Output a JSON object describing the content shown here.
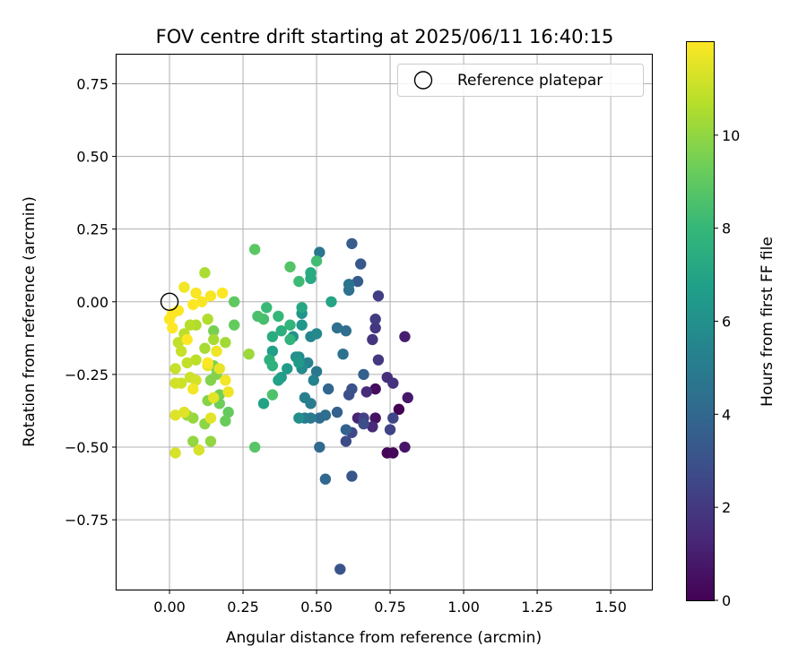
{
  "chart_data": {
    "type": "scatter",
    "title": "FOV centre drift starting at 2025/06/11 16:40:15",
    "xlabel": "Angular distance from reference (arcmin)",
    "ylabel": "Rotation from reference (arcmin)",
    "xlim": [
      -0.18,
      1.64
    ],
    "ylim": [
      -0.99,
      0.85
    ],
    "xticks": [
      "0.00",
      "0.25",
      "0.50",
      "0.75",
      "1.00",
      "1.25",
      "1.50"
    ],
    "xtick_values": [
      0,
      0.25,
      0.5,
      0.75,
      1.0,
      1.25,
      1.5
    ],
    "yticks": [
      "0.75",
      "0.50",
      "0.25",
      "0.00",
      "−0.25",
      "−0.50",
      "−0.75"
    ],
    "ytick_values": [
      0.75,
      0.5,
      0.25,
      0,
      -0.25,
      -0.5,
      -0.75
    ],
    "grid": true,
    "legend": {
      "position": "top-right",
      "entries": [
        "Reference platepar"
      ]
    },
    "reference_point": {
      "x": 0,
      "y": 0
    },
    "colorbar": {
      "label": "Hours from first FF file",
      "colormap": "viridis",
      "range": [
        0,
        12
      ],
      "ticks": [
        "0",
        "2",
        "4",
        "6",
        "8",
        "10"
      ],
      "tick_values": [
        0,
        2,
        4,
        6,
        8,
        10
      ]
    },
    "color_stops": [
      "#440154",
      "#482878",
      "#3e4a89",
      "#31688e",
      "#26828e",
      "#1f9e89",
      "#35b779",
      "#6ece58",
      "#b5de2b",
      "#fde725"
    ],
    "series": [
      {
        "points": [
          {
            "x": 0.78,
            "y": -0.37,
            "c": 0.0
          },
          {
            "x": 0.74,
            "y": -0.52,
            "c": 0.1
          },
          {
            "x": 0.76,
            "y": -0.52,
            "c": 0.2
          },
          {
            "x": 0.7,
            "y": -0.3,
            "c": 0.4
          },
          {
            "x": 0.7,
            "y": -0.4,
            "c": 0.6
          },
          {
            "x": 0.8,
            "y": -0.5,
            "c": 0.7
          },
          {
            "x": 0.81,
            "y": -0.33,
            "c": 0.8
          },
          {
            "x": 0.8,
            "y": -0.12,
            "c": 1.0
          },
          {
            "x": 0.64,
            "y": -0.4,
            "c": 1.2
          },
          {
            "x": 0.69,
            "y": -0.43,
            "c": 1.4
          },
          {
            "x": 0.67,
            "y": -0.31,
            "c": 1.5
          },
          {
            "x": 0.74,
            "y": -0.26,
            "c": 1.6
          },
          {
            "x": 0.76,
            "y": -0.28,
            "c": 1.7
          },
          {
            "x": 0.69,
            "y": -0.13,
            "c": 1.8
          },
          {
            "x": 0.7,
            "y": -0.09,
            "c": 1.9
          },
          {
            "x": 0.71,
            "y": -0.2,
            "c": 2.0
          },
          {
            "x": 0.7,
            "y": -0.06,
            "c": 2.1
          },
          {
            "x": 0.71,
            "y": 0.02,
            "c": 2.2
          },
          {
            "x": 0.66,
            "y": -0.4,
            "c": 2.3
          },
          {
            "x": 0.75,
            "y": -0.44,
            "c": 2.4
          },
          {
            "x": 0.76,
            "y": -0.4,
            "c": 2.5
          },
          {
            "x": 0.62,
            "y": -0.45,
            "c": 2.6
          },
          {
            "x": 0.6,
            "y": -0.48,
            "c": 2.7
          },
          {
            "x": 0.66,
            "y": -0.42,
            "c": 2.8
          },
          {
            "x": 0.61,
            "y": -0.32,
            "c": 2.9
          },
          {
            "x": 0.62,
            "y": -0.3,
            "c": 3.0
          },
          {
            "x": 0.58,
            "y": -0.92,
            "c": 3.1
          },
          {
            "x": 0.62,
            "y": -0.6,
            "c": 3.2
          },
          {
            "x": 0.65,
            "y": 0.13,
            "c": 3.3
          },
          {
            "x": 0.64,
            "y": 0.07,
            "c": 3.4
          },
          {
            "x": 0.62,
            "y": 0.2,
            "c": 3.5
          },
          {
            "x": 0.66,
            "y": -0.25,
            "c": 3.6
          },
          {
            "x": 0.57,
            "y": -0.38,
            "c": 3.7
          },
          {
            "x": 0.6,
            "y": -0.44,
            "c": 3.8
          },
          {
            "x": 0.54,
            "y": -0.3,
            "c": 3.9
          },
          {
            "x": 0.53,
            "y": -0.61,
            "c": 4.0
          },
          {
            "x": 0.51,
            "y": -0.5,
            "c": 4.1
          },
          {
            "x": 0.51,
            "y": -0.4,
            "c": 4.2
          },
          {
            "x": 0.53,
            "y": -0.39,
            "c": 4.3
          },
          {
            "x": 0.6,
            "y": -0.1,
            "c": 4.3
          },
          {
            "x": 0.57,
            "y": -0.09,
            "c": 4.4
          },
          {
            "x": 0.59,
            "y": -0.18,
            "c": 4.5
          },
          {
            "x": 0.61,
            "y": 0.04,
            "c": 4.5
          },
          {
            "x": 0.61,
            "y": 0.06,
            "c": 4.6
          },
          {
            "x": 0.51,
            "y": 0.17,
            "c": 4.7
          },
          {
            "x": 0.5,
            "y": -0.24,
            "c": 4.8
          },
          {
            "x": 0.48,
            "y": -0.4,
            "c": 4.9
          },
          {
            "x": 0.46,
            "y": -0.4,
            "c": 5.0
          },
          {
            "x": 0.48,
            "y": -0.35,
            "c": 5.1
          },
          {
            "x": 0.46,
            "y": -0.33,
            "c": 5.2
          },
          {
            "x": 0.49,
            "y": -0.27,
            "c": 5.3
          },
          {
            "x": 0.47,
            "y": -0.21,
            "c": 5.4
          },
          {
            "x": 0.48,
            "y": -0.12,
            "c": 5.5
          },
          {
            "x": 0.5,
            "y": -0.11,
            "c": 5.6
          },
          {
            "x": 0.44,
            "y": -0.19,
            "c": 5.7
          },
          {
            "x": 0.45,
            "y": -0.23,
            "c": 5.8
          },
          {
            "x": 0.44,
            "y": -0.4,
            "c": 5.9
          },
          {
            "x": 0.42,
            "y": -0.12,
            "c": 6.0
          },
          {
            "x": 0.43,
            "y": -0.19,
            "c": 6.1
          },
          {
            "x": 0.45,
            "y": -0.04,
            "c": 6.2
          },
          {
            "x": 0.45,
            "y": -0.08,
            "c": 6.3
          },
          {
            "x": 0.44,
            "y": -0.21,
            "c": 6.4
          },
          {
            "x": 0.4,
            "y": -0.23,
            "c": 6.5
          },
          {
            "x": 0.38,
            "y": -0.26,
            "c": 6.6
          },
          {
            "x": 0.35,
            "y": -0.17,
            "c": 6.7
          },
          {
            "x": 0.37,
            "y": -0.27,
            "c": 6.8
          },
          {
            "x": 0.32,
            "y": -0.35,
            "c": 6.9
          },
          {
            "x": 0.55,
            "y": 0.0,
            "c": 7.0
          },
          {
            "x": 0.45,
            "y": -0.02,
            "c": 7.1
          },
          {
            "x": 0.48,
            "y": 0.08,
            "c": 7.2
          },
          {
            "x": 0.48,
            "y": 0.1,
            "c": 7.3
          },
          {
            "x": 0.35,
            "y": -0.12,
            "c": 7.4
          },
          {
            "x": 0.38,
            "y": -0.1,
            "c": 7.5
          },
          {
            "x": 0.34,
            "y": -0.2,
            "c": 7.6
          },
          {
            "x": 0.35,
            "y": -0.22,
            "c": 7.7
          },
          {
            "x": 0.41,
            "y": -0.13,
            "c": 7.8
          },
          {
            "x": 0.41,
            "y": -0.08,
            "c": 7.9
          },
          {
            "x": 0.37,
            "y": -0.05,
            "c": 8.0
          },
          {
            "x": 0.33,
            "y": -0.02,
            "c": 8.1
          },
          {
            "x": 0.44,
            "y": 0.07,
            "c": 8.2
          },
          {
            "x": 0.5,
            "y": 0.14,
            "c": 8.3
          },
          {
            "x": 0.32,
            "y": -0.06,
            "c": 8.4
          },
          {
            "x": 0.3,
            "y": -0.05,
            "c": 8.5
          },
          {
            "x": 0.35,
            "y": -0.32,
            "c": 8.6
          },
          {
            "x": 0.41,
            "y": 0.12,
            "c": 8.7
          },
          {
            "x": 0.29,
            "y": -0.5,
            "c": 8.8
          },
          {
            "x": 0.29,
            "y": 0.18,
            "c": 8.9
          },
          {
            "x": 0.22,
            "y": 0.0,
            "c": 9.0
          },
          {
            "x": 0.22,
            "y": -0.08,
            "c": 9.1
          },
          {
            "x": 0.2,
            "y": -0.38,
            "c": 9.1
          },
          {
            "x": 0.19,
            "y": -0.41,
            "c": 9.2
          },
          {
            "x": 0.17,
            "y": -0.35,
            "c": 9.3
          },
          {
            "x": 0.17,
            "y": -0.32,
            "c": 9.4
          },
          {
            "x": 0.15,
            "y": -0.1,
            "c": 9.5
          },
          {
            "x": 0.15,
            "y": -0.22,
            "c": 9.6
          },
          {
            "x": 0.16,
            "y": -0.25,
            "c": 9.7
          },
          {
            "x": 0.14,
            "y": -0.27,
            "c": 9.7
          },
          {
            "x": 0.13,
            "y": -0.34,
            "c": 9.8
          },
          {
            "x": 0.12,
            "y": -0.42,
            "c": 9.9
          },
          {
            "x": 0.14,
            "y": -0.48,
            "c": 10.0
          },
          {
            "x": 0.08,
            "y": -0.48,
            "c": 10.0
          },
          {
            "x": 0.08,
            "y": -0.4,
            "c": 10.1
          },
          {
            "x": 0.06,
            "y": -0.39,
            "c": 10.2
          },
          {
            "x": 0.27,
            "y": -0.18,
            "c": 10.2
          },
          {
            "x": 0.19,
            "y": -0.14,
            "c": 10.3
          },
          {
            "x": 0.15,
            "y": -0.13,
            "c": 10.4
          },
          {
            "x": 0.12,
            "y": -0.16,
            "c": 10.4
          },
          {
            "x": 0.12,
            "y": 0.1,
            "c": 10.5
          },
          {
            "x": 0.13,
            "y": -0.06,
            "c": 10.6
          },
          {
            "x": 0.09,
            "y": -0.08,
            "c": 10.6
          },
          {
            "x": 0.07,
            "y": -0.08,
            "c": 10.7
          },
          {
            "x": 0.05,
            "y": -0.11,
            "c": 10.8
          },
          {
            "x": 0.09,
            "y": -0.2,
            "c": 10.8
          },
          {
            "x": 0.06,
            "y": -0.21,
            "c": 10.9
          },
          {
            "x": 0.03,
            "y": -0.14,
            "c": 10.9
          },
          {
            "x": 0.04,
            "y": -0.17,
            "c": 11.0
          },
          {
            "x": 0.02,
            "y": -0.23,
            "c": 11.0
          },
          {
            "x": 0.04,
            "y": -0.28,
            "c": 11.1
          },
          {
            "x": 0.07,
            "y": -0.26,
            "c": 11.1
          },
          {
            "x": 0.09,
            "y": -0.27,
            "c": 11.2
          },
          {
            "x": 0.02,
            "y": -0.28,
            "c": 11.2
          },
          {
            "x": 0.02,
            "y": -0.52,
            "c": 11.3
          },
          {
            "x": 0.1,
            "y": -0.51,
            "c": 11.3
          },
          {
            "x": 0.02,
            "y": -0.39,
            "c": 11.4
          },
          {
            "x": 0.05,
            "y": -0.38,
            "c": 11.4
          },
          {
            "x": 0.14,
            "y": -0.4,
            "c": 11.5
          },
          {
            "x": 0.15,
            "y": -0.33,
            "c": 11.5
          },
          {
            "x": 0.13,
            "y": -0.22,
            "c": 11.6
          },
          {
            "x": 0.17,
            "y": -0.23,
            "c": 11.6
          },
          {
            "x": 0.16,
            "y": -0.17,
            "c": 11.7
          },
          {
            "x": 0.2,
            "y": -0.31,
            "c": 11.7
          },
          {
            "x": 0.19,
            "y": -0.27,
            "c": 11.8
          },
          {
            "x": 0.08,
            "y": -0.3,
            "c": 11.8
          },
          {
            "x": 0.05,
            "y": 0.05,
            "c": 11.8
          },
          {
            "x": 0.09,
            "y": 0.03,
            "c": 11.9
          },
          {
            "x": 0.11,
            "y": 0.0,
            "c": 11.9
          },
          {
            "x": 0.14,
            "y": 0.02,
            "c": 11.9
          },
          {
            "x": 0.18,
            "y": 0.03,
            "c": 12.0
          },
          {
            "x": 0.01,
            "y": -0.04,
            "c": 12.0
          },
          {
            "x": 0.0,
            "y": -0.06,
            "c": 12.0
          },
          {
            "x": 0.01,
            "y": -0.09,
            "c": 12.0
          },
          {
            "x": 0.03,
            "y": -0.03,
            "c": 12.0
          },
          {
            "x": 0.08,
            "y": -0.01,
            "c": 12.0
          },
          {
            "x": 0.06,
            "y": -0.13,
            "c": 12.0
          },
          {
            "x": 0.13,
            "y": -0.21,
            "c": 12.0
          }
        ]
      }
    ]
  }
}
